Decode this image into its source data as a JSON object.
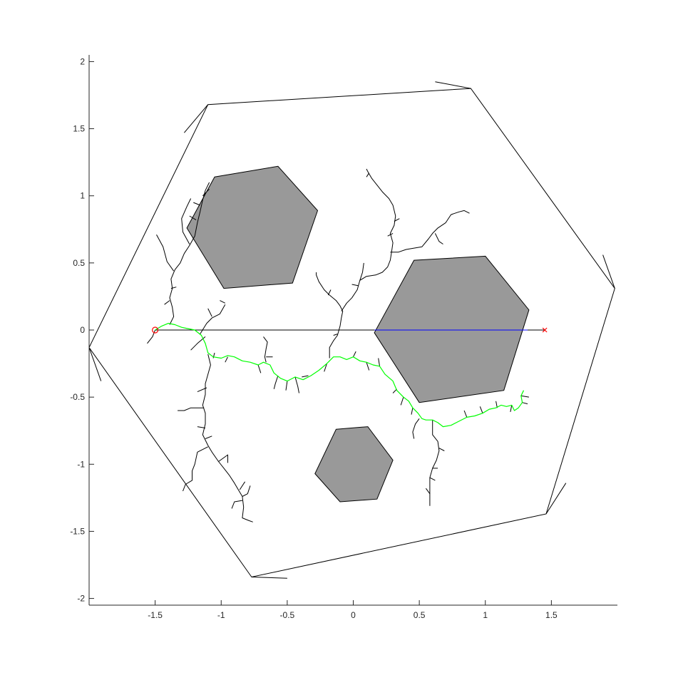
{
  "chart_data": {
    "type": "line",
    "title": "",
    "xlabel": "",
    "ylabel": "",
    "xlim": [
      -2,
      2
    ],
    "ylim": [
      -2.05,
      2.05
    ],
    "x_ticks": [
      -1.5,
      -1,
      -0.5,
      0,
      0.5,
      1,
      1.5
    ],
    "x_tick_labels": [
      "-1.5",
      "-1",
      "-0.5",
      "0",
      "0.5",
      "1",
      "1.5"
    ],
    "y_ticks": [
      -2,
      -1.5,
      -1,
      -0.5,
      0,
      0.5,
      1,
      1.5,
      2
    ],
    "y_tick_labels": [
      "-2",
      "-1.5",
      "-1",
      "-0.5",
      "0",
      "0.5",
      "1",
      "1.5",
      "2"
    ],
    "grid": false,
    "legend": "none",
    "colors": {
      "boundary": "#000000",
      "obstacle_fill": "#999999",
      "tree": "#000000",
      "path": "#00ff00",
      "straight_line": "#0000ff",
      "start": "#ff0000",
      "goal": "#ff0000"
    },
    "start": [
      -1.5,
      0.0
    ],
    "goal": [
      1.45,
      0.0
    ],
    "boundary": [
      [
        -2.0,
        -0.13
      ],
      [
        -1.1,
        1.68
      ],
      [
        0.89,
        1.8
      ],
      [
        1.98,
        0.31
      ],
      [
        1.46,
        -1.37
      ],
      [
        -0.77,
        -1.84
      ]
    ],
    "boundary_corner_marks": [
      [
        [
          -1.1,
          1.68
        ],
        [
          -1.28,
          1.47
        ]
      ],
      [
        [
          0.89,
          1.8
        ],
        [
          0.62,
          1.85
        ]
      ],
      [
        [
          1.98,
          0.31
        ],
        [
          1.89,
          0.56
        ]
      ],
      [
        [
          1.46,
          -1.37
        ],
        [
          1.61,
          -1.14
        ]
      ],
      [
        [
          -0.77,
          -1.84
        ],
        [
          -0.5,
          -1.85
        ]
      ],
      [
        [
          -2.0,
          -0.13
        ],
        [
          -1.91,
          -0.38
        ]
      ]
    ],
    "obstacles": [
      [
        [
          -1.05,
          1.14
        ],
        [
          -0.57,
          1.22
        ],
        [
          -0.27,
          0.89
        ],
        [
          -0.46,
          0.35
        ],
        [
          -0.98,
          0.31
        ],
        [
          -1.26,
          0.76
        ]
      ],
      [
        [
          0.46,
          0.52
        ],
        [
          1.0,
          0.55
        ],
        [
          1.33,
          0.15
        ],
        [
          1.14,
          -0.45
        ],
        [
          0.5,
          -0.54
        ],
        [
          0.16,
          -0.02
        ]
      ],
      [
        [
          -0.13,
          -0.74
        ],
        [
          0.11,
          -0.72
        ],
        [
          0.3,
          -0.97
        ],
        [
          0.18,
          -1.26
        ],
        [
          -0.1,
          -1.28
        ],
        [
          -0.29,
          -1.07
        ]
      ]
    ],
    "straight_line": [
      [
        -1.5,
        0.0
      ],
      [
        1.45,
        0.0
      ]
    ],
    "straight_line_blocked": [
      [
        -1.5,
        0.0
      ],
      [
        0.16,
        0.0
      ]
    ],
    "straight_line_through": [
      [
        0.16,
        0.0
      ],
      [
        1.32,
        0.0
      ]
    ],
    "path": [
      [
        -1.5,
        0.0
      ],
      [
        -1.45,
        0.03
      ],
      [
        -1.4,
        0.05
      ],
      [
        -1.35,
        0.04
      ],
      [
        -1.3,
        0.02
      ],
      [
        -1.25,
        0.01
      ],
      [
        -1.2,
        0.0
      ],
      [
        -1.15,
        -0.04
      ],
      [
        -1.12,
        -0.1
      ],
      [
        -1.1,
        -0.17
      ],
      [
        -1.06,
        -0.2
      ],
      [
        -1.0,
        -0.21
      ],
      [
        -0.95,
        -0.19
      ],
      [
        -0.9,
        -0.2
      ],
      [
        -0.84,
        -0.23
      ],
      [
        -0.78,
        -0.24
      ],
      [
        -0.72,
        -0.26
      ],
      [
        -0.68,
        -0.24
      ],
      [
        -0.63,
        -0.26
      ],
      [
        -0.6,
        -0.32
      ],
      [
        -0.55,
        -0.36
      ],
      [
        -0.5,
        -0.38
      ],
      [
        -0.44,
        -0.35
      ],
      [
        -0.38,
        -0.37
      ],
      [
        -0.32,
        -0.34
      ],
      [
        -0.26,
        -0.3
      ],
      [
        -0.2,
        -0.25
      ],
      [
        -0.15,
        -0.2
      ],
      [
        -0.1,
        -0.2
      ],
      [
        -0.05,
        -0.22
      ],
      [
        0.0,
        -0.2
      ],
      [
        0.05,
        -0.23
      ],
      [
        0.1,
        -0.24
      ],
      [
        0.15,
        -0.26
      ],
      [
        0.2,
        -0.27
      ],
      [
        0.24,
        -0.33
      ],
      [
        0.3,
        -0.38
      ],
      [
        0.33,
        -0.45
      ],
      [
        0.38,
        -0.5
      ],
      [
        0.42,
        -0.53
      ],
      [
        0.45,
        -0.58
      ],
      [
        0.49,
        -0.62
      ],
      [
        0.52,
        -0.66
      ],
      [
        0.55,
        -0.67
      ],
      [
        0.6,
        -0.67
      ],
      [
        0.64,
        -0.69
      ],
      [
        0.68,
        -0.72
      ],
      [
        0.74,
        -0.71
      ],
      [
        0.8,
        -0.68
      ],
      [
        0.86,
        -0.65
      ],
      [
        0.92,
        -0.64
      ],
      [
        0.98,
        -0.62
      ],
      [
        1.03,
        -0.59
      ],
      [
        1.08,
        -0.58
      ],
      [
        1.12,
        -0.56
      ],
      [
        1.16,
        -0.57
      ],
      [
        1.2,
        -0.56
      ],
      [
        1.22,
        -0.6
      ],
      [
        1.25,
        -0.58
      ],
      [
        1.28,
        -0.54
      ],
      [
        1.27,
        -0.49
      ],
      [
        1.29,
        -0.45
      ]
    ],
    "tree_branches": [
      [
        [
          -1.39,
          0.04
        ],
        [
          -1.36,
          0.1
        ],
        [
          -1.37,
          0.17
        ],
        [
          -1.39,
          0.24
        ],
        [
          -1.37,
          0.31
        ],
        [
          -1.38,
          0.38
        ],
        [
          -1.35,
          0.45
        ],
        [
          -1.31,
          0.5
        ],
        [
          -1.28,
          0.57
        ],
        [
          -1.24,
          0.63
        ],
        [
          -1.2,
          0.7
        ],
        [
          -1.18,
          0.8
        ],
        [
          -1.16,
          0.88
        ],
        [
          -1.14,
          0.97
        ],
        [
          -1.12,
          1.04
        ],
        [
          -1.09,
          1.1
        ]
      ],
      [
        [
          -1.36,
          0.44
        ],
        [
          -1.41,
          0.51
        ],
        [
          -1.44,
          0.62
        ],
        [
          -1.49,
          0.71
        ]
      ],
      [
        [
          -1.24,
          0.64
        ],
        [
          -1.29,
          0.73
        ],
        [
          -1.3,
          0.83
        ],
        [
          -1.26,
          0.92
        ],
        [
          -1.23,
          0.98
        ]
      ],
      [
        [
          -1.19,
          0.82
        ],
        [
          -1.24,
          0.85
        ]
      ],
      [
        [
          -1.16,
          0.93
        ],
        [
          -1.21,
          0.95
        ]
      ],
      [
        [
          -1.14,
          1.0
        ],
        [
          -1.09,
          1.05
        ]
      ],
      [
        [
          -1.38,
          0.31
        ],
        [
          -1.34,
          0.32
        ]
      ],
      [
        [
          -1.39,
          0.22
        ],
        [
          -1.43,
          0.19
        ]
      ],
      [
        [
          -1.16,
          -0.03
        ],
        [
          -1.11,
          0.05
        ],
        [
          -1.07,
          0.09
        ],
        [
          -1.01,
          0.12
        ],
        [
          -0.97,
          0.19
        ]
      ],
      [
        [
          -1.07,
          0.1
        ],
        [
          -1.1,
          0.16
        ]
      ],
      [
        [
          -0.97,
          0.2
        ],
        [
          -1.01,
          0.22
        ]
      ],
      [
        [
          -1.12,
          -0.05
        ],
        [
          -1.18,
          -0.1
        ],
        [
          -1.23,
          -0.15
        ]
      ],
      [
        [
          -1.1,
          -0.18
        ],
        [
          -1.08,
          -0.26
        ],
        [
          -1.1,
          -0.33
        ],
        [
          -1.12,
          -0.4
        ],
        [
          -1.12,
          -0.48
        ],
        [
          -1.14,
          -0.56
        ],
        [
          -1.12,
          -0.62
        ],
        [
          -1.12,
          -0.7
        ],
        [
          -1.14,
          -0.78
        ],
        [
          -1.1,
          -0.86
        ],
        [
          -1.07,
          -0.91
        ],
        [
          -1.02,
          -0.98
        ],
        [
          -0.98,
          -1.03
        ],
        [
          -0.94,
          -1.08
        ],
        [
          -0.9,
          -1.14
        ],
        [
          -0.87,
          -1.19
        ],
        [
          -0.84,
          -1.24
        ],
        [
          -0.83,
          -1.32
        ],
        [
          -0.84,
          -1.4
        ],
        [
          -0.79,
          -1.42
        ],
        [
          -0.76,
          -1.43
        ]
      ],
      [
        [
          -1.11,
          -0.43
        ],
        [
          -1.18,
          -0.46
        ]
      ],
      [
        [
          -1.13,
          -0.58
        ],
        [
          -1.23,
          -0.58
        ],
        [
          -1.28,
          -0.6
        ],
        [
          -1.33,
          -0.6
        ]
      ],
      [
        [
          -1.12,
          -0.73
        ],
        [
          -1.18,
          -0.72
        ]
      ],
      [
        [
          -1.12,
          -0.81
        ],
        [
          -1.07,
          -0.79
        ]
      ],
      [
        [
          -1.1,
          -0.87
        ],
        [
          -1.18,
          -0.91
        ],
        [
          -1.2,
          -1.0
        ],
        [
          -1.22,
          -1.05
        ],
        [
          -1.22,
          -1.12
        ],
        [
          -1.27,
          -1.15
        ],
        [
          -1.29,
          -1.2
        ]
      ],
      [
        [
          -1.02,
          -0.98
        ],
        [
          -0.95,
          -0.93
        ],
        [
          -0.95,
          -0.99
        ]
      ],
      [
        [
          -0.86,
          -1.19
        ],
        [
          -0.82,
          -1.13
        ]
      ],
      [
        [
          -0.84,
          -1.24
        ],
        [
          -0.8,
          -1.22
        ],
        [
          -0.78,
          -1.16
        ]
      ],
      [
        [
          -0.84,
          -1.27
        ],
        [
          -0.9,
          -1.28
        ],
        [
          -0.92,
          -1.33
        ]
      ],
      [
        [
          -1.06,
          -0.21
        ],
        [
          -1.05,
          -0.17
        ]
      ],
      [
        [
          -0.95,
          -0.2
        ],
        [
          -0.97,
          -0.24
        ]
      ],
      [
        [
          -0.72,
          -0.26
        ],
        [
          -0.7,
          -0.32
        ]
      ],
      [
        [
          -0.66,
          -0.24
        ],
        [
          -0.67,
          -0.2
        ],
        [
          -0.66,
          -0.14
        ],
        [
          -0.65,
          -0.09
        ],
        [
          -0.68,
          -0.05
        ]
      ],
      [
        [
          -0.66,
          -0.2
        ],
        [
          -0.61,
          -0.2
        ]
      ],
      [
        [
          -0.57,
          -0.34
        ],
        [
          -0.59,
          -0.4
        ],
        [
          -0.6,
          -0.44
        ]
      ],
      [
        [
          -0.5,
          -0.38
        ],
        [
          -0.51,
          -0.45
        ]
      ],
      [
        [
          -0.44,
          -0.35
        ],
        [
          -0.42,
          -0.42
        ],
        [
          -0.41,
          -0.47
        ]
      ],
      [
        [
          -0.34,
          -0.34
        ],
        [
          -0.39,
          -0.35
        ]
      ],
      [
        [
          -0.2,
          -0.25
        ],
        [
          -0.22,
          -0.31
        ]
      ],
      [
        [
          -0.18,
          -0.21
        ],
        [
          -0.18,
          -0.13
        ],
        [
          -0.15,
          -0.08
        ],
        [
          -0.12,
          -0.04
        ],
        [
          -0.1,
          0.03
        ],
        [
          -0.09,
          0.09
        ],
        [
          -0.08,
          0.14
        ],
        [
          -0.1,
          0.18
        ],
        [
          -0.13,
          0.22
        ],
        [
          -0.18,
          0.26
        ],
        [
          -0.22,
          0.3
        ],
        [
          -0.26,
          0.36
        ],
        [
          -0.28,
          0.41
        ],
        [
          -0.28,
          0.43
        ]
      ],
      [
        [
          -0.09,
          0.14
        ],
        [
          -0.05,
          0.2
        ],
        [
          -0.01,
          0.24
        ],
        [
          0.03,
          0.3
        ],
        [
          0.05,
          0.37
        ],
        [
          0.07,
          0.43
        ],
        [
          0.08,
          0.5
        ]
      ],
      [
        [
          0.05,
          0.37
        ],
        [
          0.1,
          0.4
        ],
        [
          0.17,
          0.41
        ],
        [
          0.22,
          0.43
        ],
        [
          0.26,
          0.47
        ],
        [
          0.28,
          0.52
        ],
        [
          0.29,
          0.58
        ],
        [
          0.3,
          0.65
        ],
        [
          0.28,
          0.72
        ],
        [
          0.31,
          0.78
        ],
        [
          0.32,
          0.85
        ],
        [
          0.3,
          0.93
        ],
        [
          0.27,
          0.98
        ],
        [
          0.22,
          1.03
        ],
        [
          0.18,
          1.08
        ],
        [
          0.14,
          1.13
        ],
        [
          0.11,
          1.18
        ],
        [
          0.1,
          1.2
        ]
      ],
      [
        [
          0.28,
          0.58
        ],
        [
          0.34,
          0.58
        ],
        [
          0.4,
          0.6
        ],
        [
          0.46,
          0.61
        ],
        [
          0.52,
          0.62
        ],
        [
          0.57,
          0.68
        ],
        [
          0.6,
          0.72
        ],
        [
          0.64,
          0.76
        ],
        [
          0.7,
          0.8
        ],
        [
          0.74,
          0.86
        ],
        [
          0.8,
          0.88
        ],
        [
          0.84,
          0.89
        ],
        [
          0.88,
          0.87
        ]
      ],
      [
        [
          0.62,
          0.72
        ],
        [
          0.65,
          0.66
        ],
        [
          0.68,
          0.64
        ]
      ],
      [
        [
          0.3,
          0.72
        ],
        [
          0.26,
          0.7
        ]
      ],
      [
        [
          0.31,
          0.81
        ],
        [
          0.35,
          0.83
        ]
      ],
      [
        [
          0.12,
          1.17
        ],
        [
          0.1,
          1.14
        ]
      ],
      [
        [
          0.04,
          0.33
        ],
        [
          -0.01,
          0.34
        ]
      ],
      [
        [
          -0.19,
          0.26
        ],
        [
          -0.17,
          0.3
        ]
      ],
      [
        [
          -0.12,
          -0.03
        ],
        [
          -0.15,
          -0.04
        ]
      ],
      [
        [
          0.0,
          -0.2
        ],
        [
          0.02,
          -0.16
        ]
      ],
      [
        [
          0.1,
          -0.24
        ],
        [
          0.12,
          -0.3
        ]
      ],
      [
        [
          0.2,
          -0.27
        ],
        [
          0.19,
          -0.21
        ]
      ],
      [
        [
          0.33,
          -0.44
        ],
        [
          0.3,
          -0.47
        ]
      ],
      [
        [
          0.38,
          -0.5
        ],
        [
          0.36,
          -0.56
        ]
      ],
      [
        [
          0.45,
          -0.58
        ],
        [
          0.44,
          -0.63
        ]
      ],
      [
        [
          0.5,
          -0.66
        ],
        [
          0.47,
          -0.7
        ],
        [
          0.45,
          -0.76
        ],
        [
          0.46,
          -0.81
        ]
      ],
      [
        [
          0.6,
          -0.67
        ],
        [
          0.6,
          -0.73
        ],
        [
          0.6,
          -0.78
        ],
        [
          0.64,
          -0.83
        ],
        [
          0.65,
          -0.9
        ],
        [
          0.63,
          -0.97
        ],
        [
          0.6,
          -1.03
        ],
        [
          0.58,
          -1.1
        ],
        [
          0.58,
          -1.17
        ],
        [
          0.58,
          -1.23
        ],
        [
          0.58,
          -1.31
        ]
      ],
      [
        [
          0.65,
          -0.88
        ],
        [
          0.69,
          -0.9
        ]
      ],
      [
        [
          0.6,
          -1.03
        ],
        [
          0.64,
          -1.03
        ]
      ],
      [
        [
          0.58,
          -1.1
        ],
        [
          0.62,
          -1.12
        ]
      ],
      [
        [
          0.58,
          -1.22
        ],
        [
          0.55,
          -1.18
        ]
      ],
      [
        [
          0.86,
          -0.65
        ],
        [
          0.84,
          -0.6
        ]
      ],
      [
        [
          0.98,
          -0.62
        ],
        [
          0.96,
          -0.57
        ]
      ],
      [
        [
          1.09,
          -0.58
        ],
        [
          1.08,
          -0.53
        ]
      ],
      [
        [
          1.27,
          -0.49
        ],
        [
          1.33,
          -0.5
        ]
      ],
      [
        [
          1.28,
          -0.54
        ],
        [
          1.32,
          -0.55
        ]
      ],
      [
        [
          1.2,
          -0.56
        ],
        [
          1.19,
          -0.61
        ]
      ],
      [
        [
          -1.5,
          0.0
        ],
        [
          -1.52,
          -0.05
        ],
        [
          -1.56,
          -0.1
        ]
      ]
    ]
  }
}
